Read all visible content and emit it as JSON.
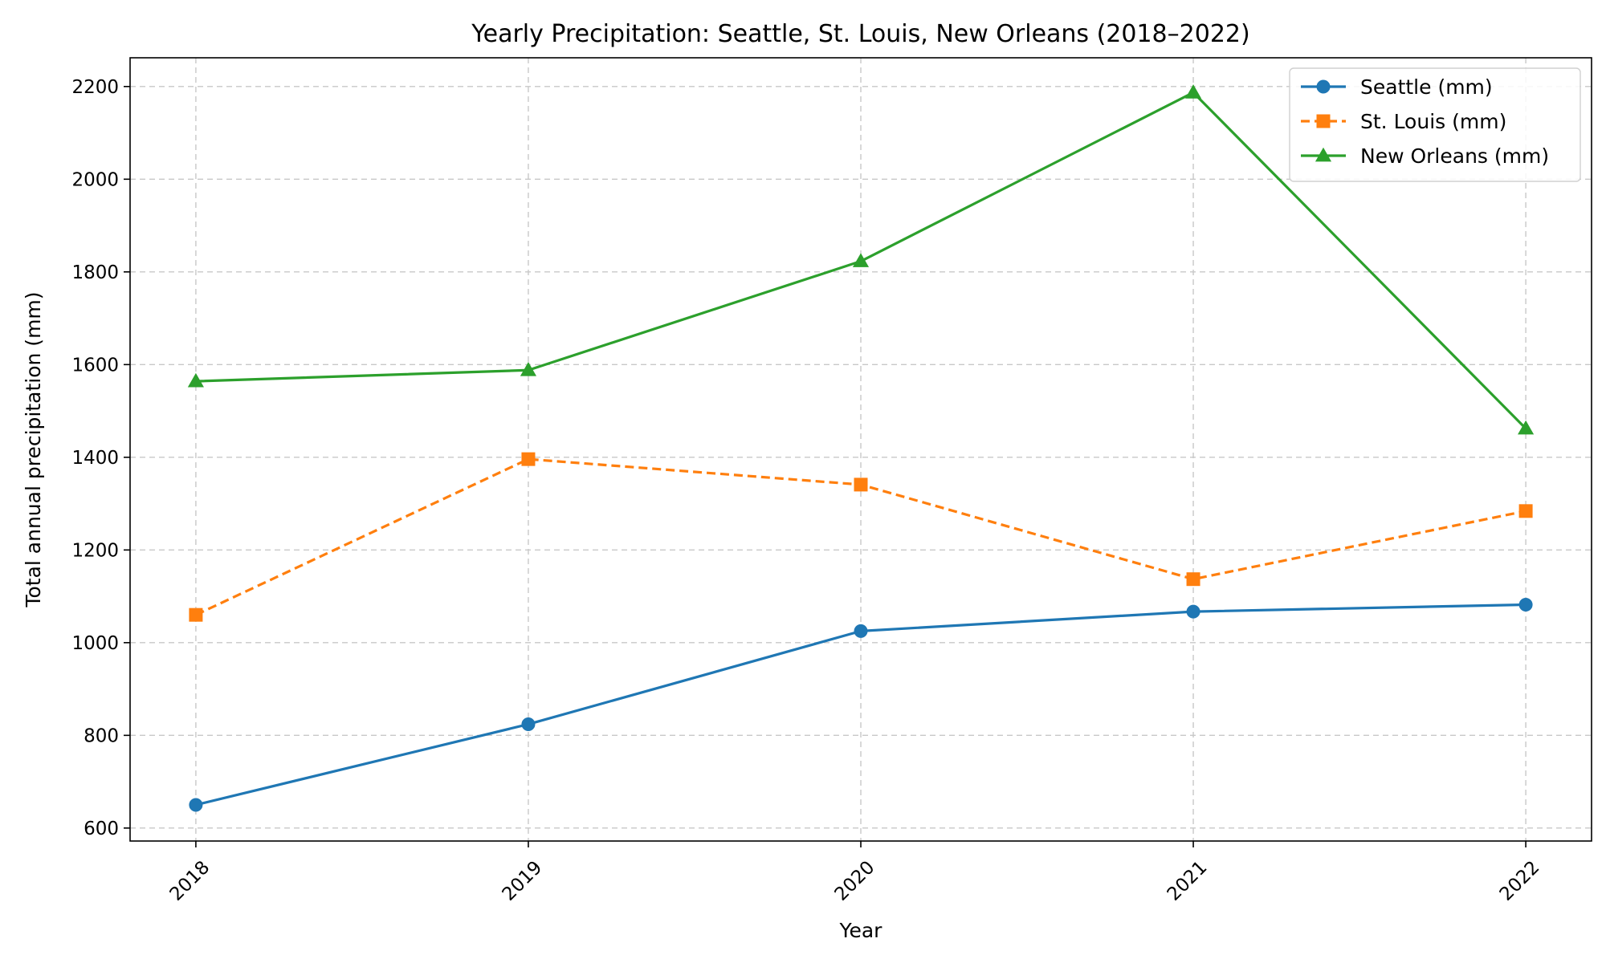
{
  "chart_data": {
    "type": "line",
    "title": "Yearly Precipitation: Seattle, St. Louis, New Orleans (2018–2022)",
    "xlabel": "Year",
    "ylabel": "Total annual precipitation (mm)",
    "categories": [
      "2018",
      "2019",
      "2020",
      "2021",
      "2022"
    ],
    "ylim": [
      572,
      2262
    ],
    "yticks": [
      600,
      800,
      1000,
      1200,
      1400,
      1600,
      1800,
      2000,
      2200
    ],
    "grid": true,
    "legend_position": "top-right",
    "series": [
      {
        "name": "Seattle (mm)",
        "values": [
          650,
          824,
          1025,
          1067,
          1082
        ],
        "color": "#1f77b4",
        "marker": "circle",
        "line_style": "solid"
      },
      {
        "name": "St. Louis (mm)",
        "values": [
          1060,
          1396,
          1341,
          1137,
          1284
        ],
        "color": "#ff7f0e",
        "marker": "square",
        "line_style": "dashed"
      },
      {
        "name": "New Orleans (mm)",
        "values": [
          1564,
          1588,
          1823,
          2187,
          1462
        ],
        "color": "#2ca02c",
        "marker": "triangle",
        "line_style": "solid"
      }
    ]
  }
}
